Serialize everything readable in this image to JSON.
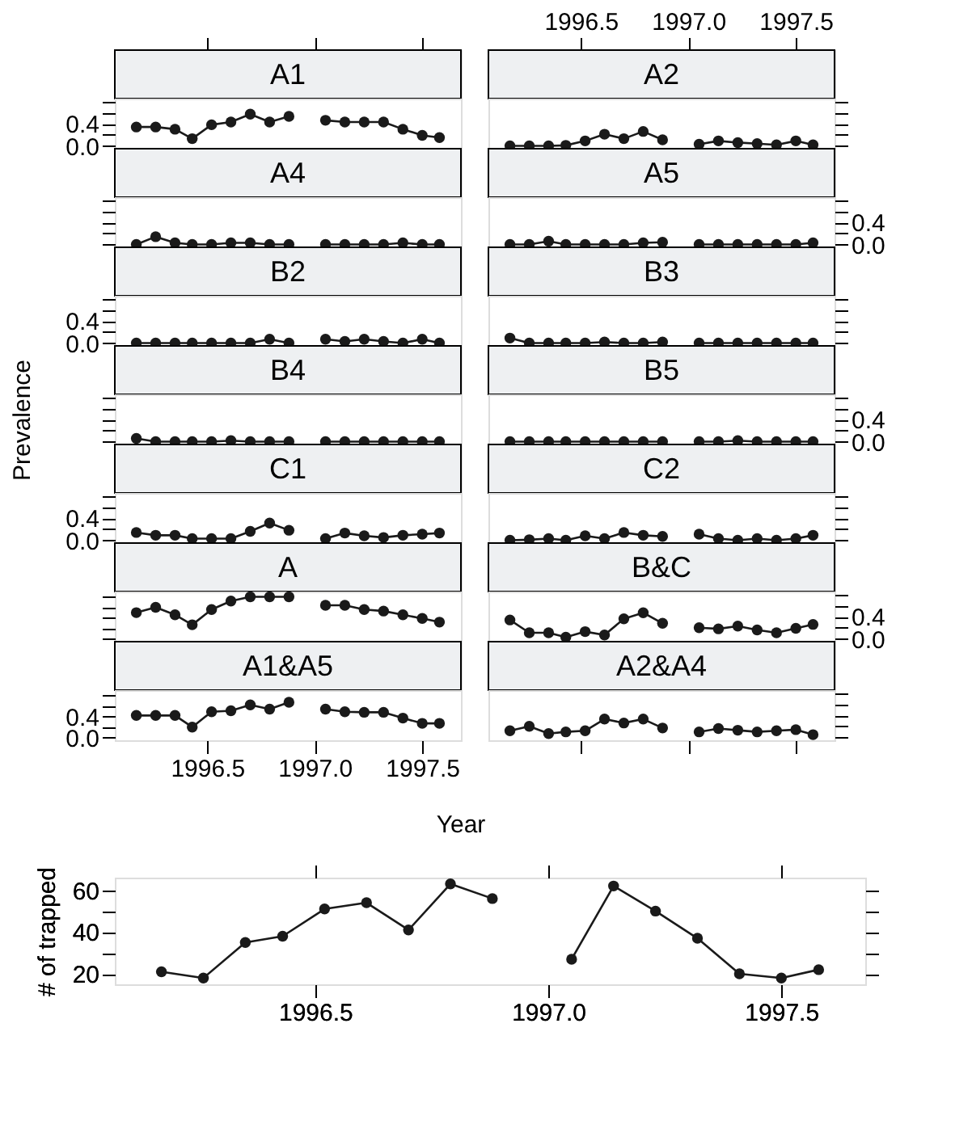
{
  "chart_data": [
    {
      "type": "line",
      "title": "A1",
      "marker": "circle",
      "tick_labels": "y",
      "xlim": [
        1996.07,
        1997.68
      ],
      "xticks": [
        {
          "value": 1996.5,
          "label": null
        },
        {
          "value": 1997.0,
          "label": null
        },
        {
          "value": 1997.5,
          "label": null
        }
      ],
      "ylim": [
        -0.05,
        0.85
      ],
      "yticks": [
        {
          "value": 0,
          "label": "0.0"
        },
        {
          "value": 0.2,
          "label": null
        },
        0.4,
        {
          "value": 0.6,
          "label": null
        },
        {
          "value": 0.8,
          "label": null
        }
      ],
      "series": [
        {
          "color": "#1a1a1a",
          "x": [
            1996.17,
            1996.26,
            1996.35,
            1996.43,
            1996.52,
            1996.61,
            1996.7,
            1996.79,
            1996.88
          ],
          "values": [
            0.34,
            0.34,
            0.3,
            0.13,
            0.38,
            0.43,
            0.57,
            0.43,
            0.53
          ]
        },
        {
          "color": "#1a1a1a",
          "x": [
            1997.05,
            1997.14,
            1997.23,
            1997.32,
            1997.41,
            1997.5,
            1997.58
          ],
          "values": [
            0.46,
            0.43,
            0.43,
            0.43,
            0.3,
            0.19,
            0.15
          ]
        }
      ]
    },
    {
      "type": "line",
      "title": "A2",
      "marker": "circle",
      "tick_labels": "x",
      "xlim": [
        1996.07,
        1997.68
      ],
      "xticks": [
        {
          "value": 1996.5,
          "label": "1996.5"
        },
        {
          "value": 1997.0,
          "label": "1997.0"
        },
        {
          "value": 1997.5,
          "label": "1997.5"
        }
      ],
      "ylim": [
        -0.05,
        0.85
      ],
      "yticks": [
        {
          "value": 0,
          "label": null
        },
        {
          "value": 0.2,
          "label": null
        },
        {
          "value": 0.4,
          "label": null
        },
        {
          "value": 0.6,
          "label": null
        },
        {
          "value": 0.8,
          "label": null
        }
      ],
      "series": [
        {
          "color": "#1a1a1a",
          "x": [
            1996.17,
            1996.26,
            1996.35,
            1996.43,
            1996.52,
            1996.61,
            1996.7,
            1996.79,
            1996.88
          ],
          "values": [
            0.0,
            0.0,
            0.0,
            0.01,
            0.09,
            0.21,
            0.13,
            0.26,
            0.11
          ]
        },
        {
          "color": "#1a1a1a",
          "x": [
            1997.05,
            1997.14,
            1997.23,
            1997.32,
            1997.41,
            1997.5,
            1997.58
          ],
          "values": [
            0.03,
            0.09,
            0.06,
            0.04,
            0.02,
            0.09,
            0.02
          ]
        }
      ]
    },
    {
      "type": "line",
      "title": "A4",
      "marker": "circle",
      "tick_labels": false,
      "xlim": [
        1996.07,
        1997.68
      ],
      "ylim": [
        -0.05,
        0.85
      ],
      "yticks": [
        {
          "value": 0,
          "label": null
        },
        {
          "value": 0.2,
          "label": null
        },
        {
          "value": 0.4,
          "label": null
        },
        {
          "value": 0.6,
          "label": null
        },
        {
          "value": 0.8,
          "label": null
        }
      ],
      "series": [
        {
          "color": "#1a1a1a",
          "x": [
            1996.17,
            1996.26,
            1996.35,
            1996.43,
            1996.52,
            1996.61,
            1996.7,
            1996.79,
            1996.88
          ],
          "values": [
            0.0,
            0.14,
            0.03,
            0.0,
            0.0,
            0.03,
            0.03,
            0.0,
            0.0
          ]
        },
        {
          "color": "#1a1a1a",
          "x": [
            1997.05,
            1997.14,
            1997.23,
            1997.32,
            1997.41,
            1997.5,
            1997.58
          ],
          "values": [
            0.0,
            0.0,
            0.0,
            0.0,
            0.03,
            0.0,
            0.0
          ]
        }
      ]
    },
    {
      "type": "line",
      "title": "A5",
      "marker": "circle",
      "tick_labels": "y",
      "xlim": [
        1996.07,
        1997.68
      ],
      "ylim": [
        -0.05,
        0.85
      ],
      "yticks": [
        {
          "value": 0,
          "label": "0.0"
        },
        {
          "value": 0.2,
          "label": null
        },
        0.4,
        {
          "value": 0.6,
          "label": null
        },
        {
          "value": 0.8,
          "label": null
        }
      ],
      "series": [
        {
          "color": "#1a1a1a",
          "x": [
            1996.17,
            1996.26,
            1996.35,
            1996.43,
            1996.52,
            1996.61,
            1996.7,
            1996.79,
            1996.88
          ],
          "values": [
            0.0,
            0.0,
            0.06,
            0.0,
            0.0,
            0.0,
            0.0,
            0.03,
            0.04
          ]
        },
        {
          "color": "#1a1a1a",
          "x": [
            1997.05,
            1997.14,
            1997.23,
            1997.32,
            1997.41,
            1997.5,
            1997.58
          ],
          "values": [
            0.0,
            0.0,
            0.0,
            0.0,
            0.0,
            0.0,
            0.03
          ]
        }
      ]
    },
    {
      "type": "line",
      "title": "B2",
      "marker": "circle",
      "tick_labels": "y",
      "xlim": [
        1996.07,
        1997.68
      ],
      "ylim": [
        -0.05,
        0.85
      ],
      "yticks": [
        {
          "value": 0,
          "label": "0.0"
        },
        {
          "value": 0.2,
          "label": null
        },
        0.4,
        {
          "value": 0.6,
          "label": null
        },
        {
          "value": 0.8,
          "label": null
        }
      ],
      "series": [
        {
          "color": "#1a1a1a",
          "x": [
            1996.17,
            1996.26,
            1996.35,
            1996.43,
            1996.52,
            1996.61,
            1996.7,
            1996.79,
            1996.88
          ],
          "values": [
            0.0,
            0.0,
            0.0,
            0.0,
            0.0,
            0.0,
            0.0,
            0.07,
            0.0
          ]
        },
        {
          "color": "#1a1a1a",
          "x": [
            1997.05,
            1997.14,
            1997.23,
            1997.32,
            1997.41,
            1997.5,
            1997.58
          ],
          "values": [
            0.07,
            0.03,
            0.07,
            0.03,
            0.0,
            0.07,
            0.0
          ]
        }
      ]
    },
    {
      "type": "line",
      "title": "B3",
      "marker": "circle",
      "tick_labels": false,
      "xlim": [
        1996.07,
        1997.68
      ],
      "ylim": [
        -0.05,
        0.85
      ],
      "yticks": [
        {
          "value": 0,
          "label": null
        },
        {
          "value": 0.2,
          "label": null
        },
        {
          "value": 0.4,
          "label": null
        },
        {
          "value": 0.6,
          "label": null
        },
        {
          "value": 0.8,
          "label": null
        }
      ],
      "series": [
        {
          "color": "#1a1a1a",
          "x": [
            1996.17,
            1996.26,
            1996.35,
            1996.43,
            1996.52,
            1996.61,
            1996.7,
            1996.79,
            1996.88
          ],
          "values": [
            0.09,
            0.0,
            0.0,
            0.0,
            0.0,
            0.02,
            0.0,
            0.0,
            0.02
          ]
        },
        {
          "color": "#1a1a1a",
          "x": [
            1997.05,
            1997.14,
            1997.23,
            1997.32,
            1997.41,
            1997.5,
            1997.58
          ],
          "values": [
            0.0,
            0.0,
            0.0,
            0.0,
            0.0,
            0.0,
            0.0
          ]
        }
      ]
    },
    {
      "type": "line",
      "title": "B4",
      "marker": "circle",
      "tick_labels": false,
      "xlim": [
        1996.07,
        1997.68
      ],
      "ylim": [
        -0.05,
        0.85
      ],
      "yticks": [
        {
          "value": 0,
          "label": null
        },
        {
          "value": 0.2,
          "label": null
        },
        {
          "value": 0.4,
          "label": null
        },
        {
          "value": 0.6,
          "label": null
        },
        {
          "value": 0.8,
          "label": null
        }
      ],
      "series": [
        {
          "color": "#1a1a1a",
          "x": [
            1996.17,
            1996.26,
            1996.35,
            1996.43,
            1996.52,
            1996.61,
            1996.7,
            1996.79,
            1996.88
          ],
          "values": [
            0.06,
            0.0,
            0.0,
            0.0,
            0.0,
            0.02,
            0.0,
            0.0,
            0.0
          ]
        },
        {
          "color": "#1a1a1a",
          "x": [
            1997.05,
            1997.14,
            1997.23,
            1997.32,
            1997.41,
            1997.5,
            1997.58
          ],
          "values": [
            0.0,
            0.0,
            0.0,
            0.0,
            0.0,
            0.0,
            0.0
          ]
        }
      ]
    },
    {
      "type": "line",
      "title": "B5",
      "marker": "circle",
      "tick_labels": "y",
      "xlim": [
        1996.07,
        1997.68
      ],
      "ylim": [
        -0.05,
        0.85
      ],
      "yticks": [
        {
          "value": 0,
          "label": "0.0"
        },
        {
          "value": 0.2,
          "label": null
        },
        0.4,
        {
          "value": 0.6,
          "label": null
        },
        {
          "value": 0.8,
          "label": null
        }
      ],
      "series": [
        {
          "color": "#1a1a1a",
          "x": [
            1996.17,
            1996.26,
            1996.35,
            1996.43,
            1996.52,
            1996.61,
            1996.7,
            1996.79,
            1996.88
          ],
          "values": [
            0.0,
            0.0,
            0.0,
            0.0,
            0.0,
            0.0,
            0.0,
            0.0,
            0.0
          ]
        },
        {
          "color": "#1a1a1a",
          "x": [
            1997.05,
            1997.14,
            1997.23,
            1997.32,
            1997.41,
            1997.5,
            1997.58
          ],
          "values": [
            0.0,
            0.0,
            0.02,
            0.0,
            0.0,
            0.0,
            0.0
          ]
        }
      ]
    },
    {
      "type": "line",
      "title": "C1",
      "marker": "circle",
      "tick_labels": "y",
      "xlim": [
        1996.07,
        1997.68
      ],
      "ylim": [
        -0.05,
        0.85
      ],
      "yticks": [
        {
          "value": 0,
          "label": "0.0"
        },
        {
          "value": 0.2,
          "label": null
        },
        0.4,
        {
          "value": 0.6,
          "label": null
        },
        {
          "value": 0.8,
          "label": null
        }
      ],
      "series": [
        {
          "color": "#1a1a1a",
          "x": [
            1996.17,
            1996.26,
            1996.35,
            1996.43,
            1996.52,
            1996.61,
            1996.7,
            1996.79,
            1996.88
          ],
          "values": [
            0.14,
            0.09,
            0.09,
            0.03,
            0.03,
            0.03,
            0.16,
            0.31,
            0.18
          ]
        },
        {
          "color": "#1a1a1a",
          "x": [
            1997.05,
            1997.14,
            1997.23,
            1997.32,
            1997.41,
            1997.5,
            1997.58
          ],
          "values": [
            0.03,
            0.13,
            0.08,
            0.05,
            0.09,
            0.11,
            0.13
          ]
        }
      ]
    },
    {
      "type": "line",
      "title": "C2",
      "marker": "circle",
      "tick_labels": false,
      "xlim": [
        1996.07,
        1997.68
      ],
      "ylim": [
        -0.05,
        0.85
      ],
      "yticks": [
        {
          "value": 0,
          "label": null
        },
        {
          "value": 0.2,
          "label": null
        },
        {
          "value": 0.4,
          "label": null
        },
        {
          "value": 0.6,
          "label": null
        },
        {
          "value": 0.8,
          "label": null
        }
      ],
      "series": [
        {
          "color": "#1a1a1a",
          "x": [
            1996.17,
            1996.26,
            1996.35,
            1996.43,
            1996.52,
            1996.61,
            1996.7,
            1996.79,
            1996.88
          ],
          "values": [
            0.0,
            0.01,
            0.03,
            0.0,
            0.08,
            0.03,
            0.14,
            0.09,
            0.07
          ]
        },
        {
          "color": "#1a1a1a",
          "x": [
            1997.05,
            1997.14,
            1997.23,
            1997.32,
            1997.41,
            1997.5,
            1997.58
          ],
          "values": [
            0.11,
            0.03,
            0.0,
            0.03,
            0.0,
            0.03,
            0.09
          ]
        }
      ]
    },
    {
      "type": "line",
      "title": "A",
      "marker": "circle",
      "tick_labels": false,
      "xlim": [
        1996.07,
        1997.68
      ],
      "ylim": [
        -0.05,
        0.9
      ],
      "yticks": [
        {
          "value": 0,
          "label": null
        },
        {
          "value": 0.2,
          "label": null
        },
        {
          "value": 0.4,
          "label": null
        },
        {
          "value": 0.6,
          "label": null
        },
        {
          "value": 0.8,
          "label": null
        }
      ],
      "series": [
        {
          "color": "#1a1a1a",
          "x": [
            1996.17,
            1996.26,
            1996.35,
            1996.43,
            1996.52,
            1996.61,
            1996.7,
            1996.79,
            1996.88
          ],
          "values": [
            0.5,
            0.6,
            0.46,
            0.27,
            0.56,
            0.72,
            0.8,
            0.8,
            0.8
          ]
        },
        {
          "color": "#1a1a1a",
          "x": [
            1997.05,
            1997.14,
            1997.23,
            1997.32,
            1997.41,
            1997.5,
            1997.58
          ],
          "values": [
            0.64,
            0.64,
            0.56,
            0.53,
            0.46,
            0.39,
            0.32
          ]
        }
      ]
    },
    {
      "type": "line",
      "title": "B&C",
      "marker": "circle",
      "tick_labels": "y",
      "xlim": [
        1996.07,
        1997.68
      ],
      "ylim": [
        -0.05,
        0.85
      ],
      "yticks": [
        {
          "value": 0,
          "label": "0.0"
        },
        {
          "value": 0.2,
          "label": null
        },
        0.4,
        {
          "value": 0.6,
          "label": null
        },
        {
          "value": 0.8,
          "label": null
        }
      ],
      "series": [
        {
          "color": "#1a1a1a",
          "x": [
            1996.17,
            1996.26,
            1996.35,
            1996.43,
            1996.52,
            1996.61,
            1996.7,
            1996.79,
            1996.88
          ],
          "values": [
            0.34,
            0.11,
            0.11,
            0.03,
            0.13,
            0.07,
            0.36,
            0.47,
            0.28
          ]
        },
        {
          "color": "#1a1a1a",
          "x": [
            1997.05,
            1997.14,
            1997.23,
            1997.32,
            1997.41,
            1997.5,
            1997.58
          ],
          "values": [
            0.2,
            0.18,
            0.23,
            0.16,
            0.11,
            0.19,
            0.26
          ]
        }
      ]
    },
    {
      "type": "line",
      "title": "A1&A5",
      "marker": "circle",
      "xlim": [
        1996.07,
        1997.68
      ],
      "xticks": [
        {
          "value": 1996.5,
          "label": "1996.5"
        },
        {
          "value": 1997.0,
          "label": "1997.0"
        },
        {
          "value": 1997.5,
          "label": "1997.5"
        }
      ],
      "ylim": [
        -0.05,
        0.9
      ],
      "yticks": [
        {
          "value": 0,
          "label": "0.0"
        },
        {
          "value": 0.2,
          "label": null
        },
        0.4,
        {
          "value": 0.6,
          "label": null
        },
        {
          "value": 0.8,
          "label": null
        }
      ],
      "series": [
        {
          "color": "#1a1a1a",
          "x": [
            1996.17,
            1996.26,
            1996.35,
            1996.43,
            1996.52,
            1996.61,
            1996.7,
            1996.79,
            1996.88
          ],
          "values": [
            0.42,
            0.42,
            0.42,
            0.2,
            0.49,
            0.51,
            0.62,
            0.54,
            0.67
          ]
        },
        {
          "color": "#1a1a1a",
          "x": [
            1997.05,
            1997.14,
            1997.23,
            1997.32,
            1997.41,
            1997.5,
            1997.58
          ],
          "values": [
            0.54,
            0.49,
            0.48,
            0.48,
            0.37,
            0.27,
            0.27
          ]
        }
      ]
    },
    {
      "type": "line",
      "title": "A2&A4",
      "marker": "circle",
      "tick_labels": false,
      "xlim": [
        1996.07,
        1997.68
      ],
      "xticks": [
        {
          "value": 1996.5,
          "label": null
        },
        {
          "value": 1997.0,
          "label": null
        },
        {
          "value": 1997.5,
          "label": null
        }
      ],
      "ylim": [
        -0.05,
        0.85
      ],
      "yticks": [
        {
          "value": 0,
          "label": null
        },
        {
          "value": 0.2,
          "label": null
        },
        {
          "value": 0.4,
          "label": null
        },
        {
          "value": 0.6,
          "label": null
        },
        {
          "value": 0.8,
          "label": null
        }
      ],
      "series": [
        {
          "color": "#1a1a1a",
          "x": [
            1996.17,
            1996.26,
            1996.35,
            1996.43,
            1996.52,
            1996.61,
            1996.7,
            1996.79,
            1996.88
          ],
          "values": [
            0.12,
            0.2,
            0.07,
            0.1,
            0.12,
            0.33,
            0.26,
            0.33,
            0.17
          ]
        },
        {
          "color": "#1a1a1a",
          "x": [
            1997.05,
            1997.14,
            1997.23,
            1997.32,
            1997.41,
            1997.5,
            1997.58
          ],
          "values": [
            0.1,
            0.16,
            0.13,
            0.1,
            0.12,
            0.14,
            0.05
          ]
        }
      ]
    },
    {
      "type": "line",
      "ylabel": "# of trapped",
      "marker": "circle",
      "xlim": [
        1996.07,
        1997.68
      ],
      "xticks": [
        {
          "value": 1996.5,
          "label": "1996.5"
        },
        {
          "value": 1997.0,
          "label": "1997.0"
        },
        {
          "value": 1997.5,
          "label": "1997.5"
        }
      ],
      "ylim": [
        15,
        66
      ],
      "yticks": [
        20,
        {
          "value": 30,
          "label": null
        },
        40,
        {
          "value": 50,
          "label": null
        },
        60
      ],
      "series": [
        {
          "color": "#1a1a1a",
          "x": [
            1996.17,
            1996.26,
            1996.35,
            1996.43,
            1996.52,
            1996.61,
            1996.7,
            1996.79,
            1996.88
          ],
          "values": [
            21,
            18,
            35,
            38,
            51,
            54,
            41,
            63,
            56
          ]
        },
        {
          "color": "#1a1a1a",
          "x": [
            1997.05,
            1997.14,
            1997.23,
            1997.32,
            1997.41,
            1997.5,
            1997.58
          ],
          "values": [
            27,
            62,
            50,
            37,
            20,
            18,
            22
          ]
        }
      ]
    },
    {
      "type": "other",
      "xlabel": "Year",
      "ylabel": "Prevalence"
    }
  ]
}
